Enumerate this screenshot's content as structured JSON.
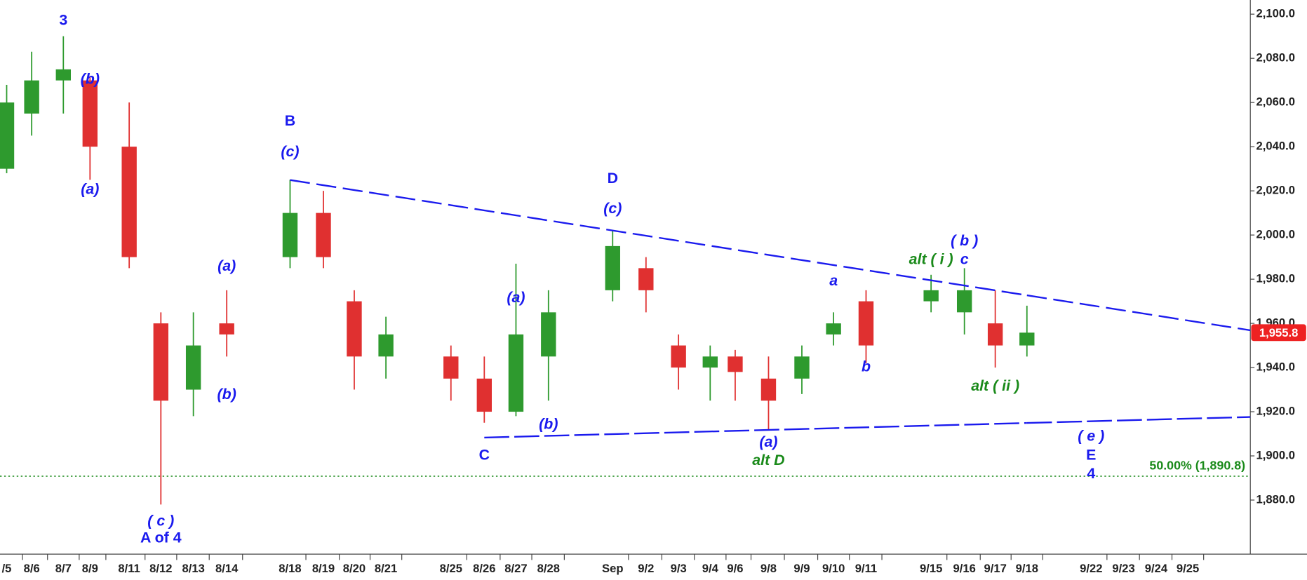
{
  "chart_data": {
    "type": "candlestick",
    "categories": [
      "/5",
      "8/6",
      "8/7",
      "8/9",
      "8/11",
      "8/12",
      "8/13",
      "8/14",
      "8/18",
      "8/19",
      "8/20",
      "8/21",
      "8/25",
      "8/26",
      "8/27",
      "8/28",
      "Sep",
      "9/2",
      "9/3",
      "9/4",
      "9/6",
      "9/8",
      "9/9",
      "9/10",
      "9/11",
      "9/15",
      "9/16",
      "9/17",
      "9/18",
      "9/22",
      "9/23",
      "9/24",
      "9/25"
    ],
    "open": [
      2030,
      2055,
      2070,
      2070,
      2040,
      1960,
      1930,
      1960,
      1990,
      2010,
      1970,
      1945,
      1945,
      1935,
      1920,
      1945,
      1975,
      1985,
      1950,
      1940,
      1945,
      1935,
      1935,
      1955,
      1970,
      1970,
      1965,
      1960,
      1950,
      null,
      null,
      null,
      null
    ],
    "high": [
      2068,
      2083,
      2090,
      2072,
      2060,
      1965,
      1965,
      1975,
      2025,
      2020,
      1975,
      1963,
      1950,
      1945,
      1987,
      1975,
      2002,
      1990,
      1955,
      1950,
      1948,
      1945,
      1950,
      1965,
      1975,
      1982,
      1985,
      1975,
      1968,
      null,
      null,
      null,
      null
    ],
    "low": [
      2028,
      2045,
      2055,
      2025,
      1985,
      1878,
      1918,
      1945,
      1985,
      1985,
      1930,
      1935,
      1925,
      1915,
      1918,
      1925,
      1970,
      1965,
      1930,
      1925,
      1925,
      1912,
      1928,
      1950,
      1942,
      1965,
      1955,
      1940,
      1945,
      null,
      null,
      null,
      null
    ],
    "close": [
      2060,
      2070,
      2075,
      2040,
      1990,
      1925,
      1950,
      1955,
      2010,
      1990,
      1945,
      1955,
      1935,
      1920,
      1955,
      1965,
      1995,
      1975,
      1940,
      1945,
      1938,
      1925,
      1945,
      1960,
      1950,
      1975,
      1975,
      1950,
      1955.8,
      null,
      null,
      null,
      null
    ],
    "up_color": "#2e9a2e",
    "down_color": "#e03030",
    "ylim": [
      1857.4,
      2106.4
    ],
    "yticks": [
      {
        "value": 1880,
        "label": "1,880.0"
      },
      {
        "value": 1900,
        "label": "1,900.0"
      },
      {
        "value": 1920,
        "label": "1,920.0"
      },
      {
        "value": 1940,
        "label": "1,940.0"
      },
      {
        "value": 1960,
        "label": "1,960.0"
      },
      {
        "value": 1980,
        "label": "1,980.0"
      },
      {
        "value": 2000,
        "label": "2,000.0"
      },
      {
        "value": 2020,
        "label": "2,020.0"
      },
      {
        "value": 2040,
        "label": "2,040.0"
      },
      {
        "value": 2060,
        "label": "2,060.0"
      },
      {
        "value": 2080,
        "label": "2,080.0"
      },
      {
        "value": 2100,
        "label": "2,100.0"
      }
    ],
    "last_price": {
      "value": 1955.8,
      "label": "1,955.8",
      "color": "#ee2222"
    },
    "fib_level": {
      "value": 1890.8,
      "label": "50.00% (1,890.8)",
      "color": "#1a8a1a"
    },
    "trendlines": [
      {
        "x": [
          "8/18",
          "9/18"
        ],
        "values": [
          2024.9,
          1972.7
        ],
        "color": "#1a1aee"
      },
      {
        "x": [
          "8/26",
          "9/18"
        ],
        "values": [
          1908.3,
          1914.9
        ],
        "color": "#1a1aee"
      }
    ],
    "annotations": [
      {
        "text": "3",
        "x": "8/7",
        "y": 2097.0,
        "color": "#1a1aee",
        "italic": false
      },
      {
        "text": "(b)",
        "x": "8/9",
        "y": 2070.2,
        "color": "#1a1aee",
        "italic": true
      },
      {
        "text": "(a)",
        "x": "8/9",
        "y": 2020.4,
        "color": "#1a1aee",
        "italic": true
      },
      {
        "text": "( c )",
        "x": "8/12",
        "y": 1870.2,
        "color": "#1a1aee",
        "italic": true
      },
      {
        "text": "A of 4",
        "x": "8/12",
        "y": 1862.6,
        "color": "#1a1aee",
        "italic": false
      },
      {
        "text": "(a)",
        "x": "8/14",
        "y": 1985.7,
        "color": "#1a1aee",
        "italic": true
      },
      {
        "text": "(b)",
        "x": "8/14",
        "y": 1927.5,
        "color": "#1a1aee",
        "italic": true
      },
      {
        "text": "B",
        "x": "8/18",
        "y": 2051.3,
        "color": "#1a1aee",
        "italic": false
      },
      {
        "text": "(c)",
        "x": "8/18",
        "y": 2037.4,
        "color": "#1a1aee",
        "italic": true
      },
      {
        "text": "D",
        "x": "Sep",
        "y": 2025.3,
        "color": "#1a1aee",
        "italic": false
      },
      {
        "text": "(c)",
        "x": "Sep",
        "y": 2011.7,
        "color": "#1a1aee",
        "italic": true
      },
      {
        "text": "(a)",
        "x": "8/27",
        "y": 1971.3,
        "color": "#1a1aee",
        "italic": true
      },
      {
        "text": "(b)",
        "x": "8/28",
        "y": 1914.0,
        "color": "#1a1aee",
        "italic": true
      },
      {
        "text": "C",
        "x": "8/26",
        "y": 1900.0,
        "color": "#1a1aee",
        "italic": false
      },
      {
        "text": "(a)",
        "x": "9/8",
        "y": 1906.0,
        "color": "#1a1aee",
        "italic": true
      },
      {
        "text": "alt D",
        "x": "9/8",
        "y": 1897.7,
        "color": "#1a8a1a",
        "italic": true
      },
      {
        "text": "a",
        "x": "9/10",
        "y": 1978.9,
        "color": "#1a1aee",
        "italic": true
      },
      {
        "text": "b",
        "x": "9/11",
        "y": 1940.0,
        "color": "#1a1aee",
        "italic": true
      },
      {
        "text": "alt ( i )",
        "x": "9/15",
        "y": 1988.7,
        "color": "#1a8a1a",
        "italic": true
      },
      {
        "text": "( b )",
        "x": "9/16",
        "y": 1997.0,
        "color": "#1a1aee",
        "italic": true
      },
      {
        "text": "c",
        "x": "9/16",
        "y": 1988.7,
        "color": "#1a1aee",
        "italic": true
      },
      {
        "text": "alt ( ii )",
        "x": "9/17",
        "y": 1931.3,
        "color": "#1a8a1a",
        "italic": true
      },
      {
        "text": "( e )",
        "x": "9/22",
        "y": 1908.7,
        "color": "#1a1aee",
        "italic": true
      },
      {
        "text": "E",
        "x": "9/22",
        "y": 1900.0,
        "color": "#1a1aee",
        "italic": false
      },
      {
        "text": "4",
        "x": "9/22",
        "y": 1891.7,
        "color": "#1a1aee",
        "italic": false
      }
    ]
  }
}
